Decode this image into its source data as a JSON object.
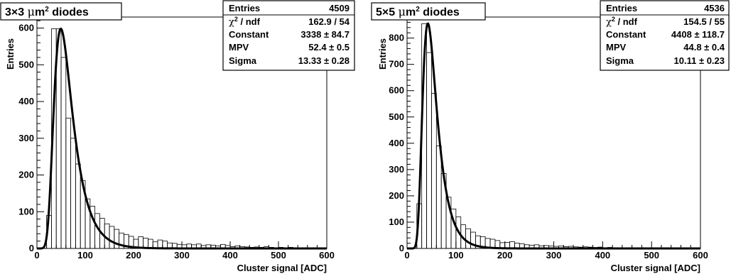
{
  "chart_data": [
    {
      "type": "bar",
      "title": "3×3 μm² diodes",
      "title_parts": [
        "3",
        "×",
        "3 ",
        "μ",
        "m",
        "2",
        " diodes"
      ],
      "xlabel": "Cluster signal [ADC]",
      "ylabel": "Entries",
      "xlim": [
        0,
        600
      ],
      "ylim": [
        0,
        630
      ],
      "xticks": [
        0,
        100,
        200,
        300,
        400,
        500,
        600
      ],
      "yticks": [
        0,
        100,
        200,
        300,
        400,
        500,
        600
      ],
      "bin_width": 10,
      "histogram": [
        0,
        0,
        90,
        598,
        598,
        520,
        355,
        300,
        230,
        185,
        135,
        115,
        95,
        82,
        67,
        60,
        52,
        42,
        38,
        33,
        25,
        32,
        28,
        25,
        18,
        23,
        20,
        15,
        14,
        11,
        10,
        12,
        10,
        12,
        8,
        10,
        9,
        7,
        11,
        8,
        5,
        7,
        5,
        4,
        3,
        4,
        3,
        5,
        3,
        2,
        3,
        2,
        3,
        2,
        1,
        2,
        1,
        1,
        0,
        1
      ],
      "fit": {
        "function": "Landau",
        "constant": 3338,
        "mpv": 52.4,
        "sigma": 13.33
      },
      "stats": {
        "rows": [
          {
            "label": "Entries",
            "value": "4509"
          },
          {
            "label": "χ² / ndf",
            "label_parts": [
              "χ",
              "2",
              " / ndf"
            ],
            "value": "162.9 / 54"
          },
          {
            "label": "Constant",
            "value": "3338 ± 84.7"
          },
          {
            "label": "MPV",
            "value": "52.4 ± 0.5"
          },
          {
            "label": "Sigma",
            "value": "13.33 ± 0.28"
          }
        ]
      }
    },
    {
      "type": "bar",
      "title": "5×5 μm² diodes",
      "title_parts": [
        "5",
        "×",
        "5 ",
        "μ",
        "m",
        "2",
        " diodes"
      ],
      "xlabel": "Cluster signal [ADC]",
      "ylabel": "Entries",
      "xlim": [
        0,
        600
      ],
      "ylim": [
        0,
        880
      ],
      "xticks": [
        0,
        100,
        200,
        300,
        400,
        500,
        600
      ],
      "yticks": [
        0,
        100,
        200,
        300,
        400,
        500,
        600,
        700,
        800
      ],
      "bin_width": 10,
      "histogram": [
        0,
        0,
        170,
        855,
        745,
        590,
        390,
        285,
        195,
        150,
        120,
        90,
        75,
        62,
        48,
        45,
        38,
        35,
        30,
        22,
        23,
        26,
        20,
        18,
        14,
        12,
        14,
        10,
        11,
        9,
        8,
        9,
        7,
        8,
        6,
        5,
        6,
        5,
        4,
        5,
        3,
        4,
        3,
        3,
        2,
        3,
        2,
        2,
        3,
        1,
        2,
        1,
        1,
        2,
        1,
        1,
        1,
        0,
        1,
        0
      ],
      "fit": {
        "function": "Landau",
        "constant": 4408,
        "mpv": 44.8,
        "sigma": 10.11
      },
      "stats": {
        "rows": [
          {
            "label": "Entries",
            "value": "4536"
          },
          {
            "label": "χ² / ndf",
            "label_parts": [
              "χ",
              "2",
              " / ndf"
            ],
            "value": "154.5 / 55"
          },
          {
            "label": "Constant",
            "value": "4408 ± 118.7"
          },
          {
            "label": "MPV",
            "value": "44.8 ± 0.4"
          },
          {
            "label": "Sigma",
            "value": "10.11 ± 0.23"
          }
        ]
      }
    }
  ]
}
